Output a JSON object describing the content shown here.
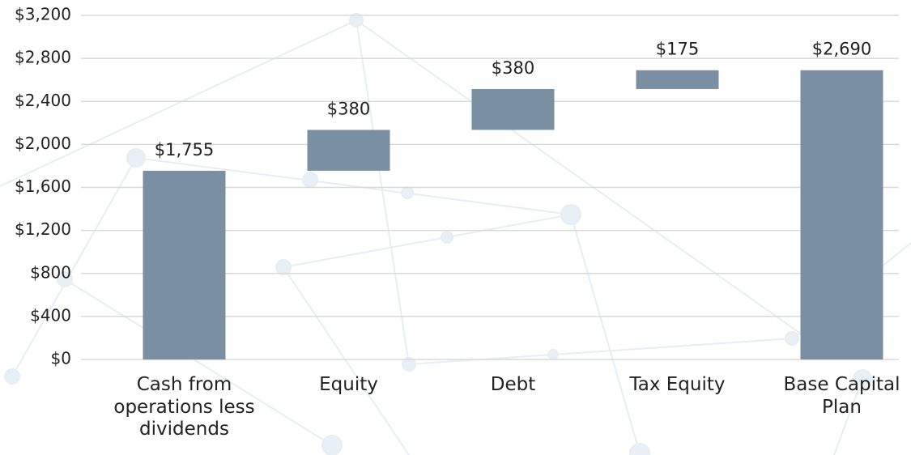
{
  "chart_data": {
    "type": "waterfall",
    "categories": [
      "Cash from operations less dividends",
      "Equity",
      "Debt",
      "Tax Equity",
      "Base Capital Plan"
    ],
    "values": [
      1755,
      380,
      380,
      175,
      2690
    ],
    "value_labels": [
      "$1,755",
      "$380",
      "$380",
      "$175",
      "$2,690"
    ],
    "measures": [
      "relative",
      "relative",
      "relative",
      "relative",
      "total"
    ],
    "color": "#7a8fa1",
    "ylim": [
      0,
      3200
    ],
    "yticks": [
      {
        "value": 0,
        "label": "$0"
      },
      {
        "value": 400,
        "label": "$400"
      },
      {
        "value": 800,
        "label": "$800"
      },
      {
        "value": 1200,
        "label": "$1,200"
      },
      {
        "value": 1600,
        "label": "$1,600"
      },
      {
        "value": 2000,
        "label": "$2,000"
      },
      {
        "value": 2400,
        "label": "$2,400"
      },
      {
        "value": 2800,
        "label": "$2,800"
      },
      {
        "value": 3200,
        "label": "$3,200"
      }
    ],
    "grid": true
  }
}
